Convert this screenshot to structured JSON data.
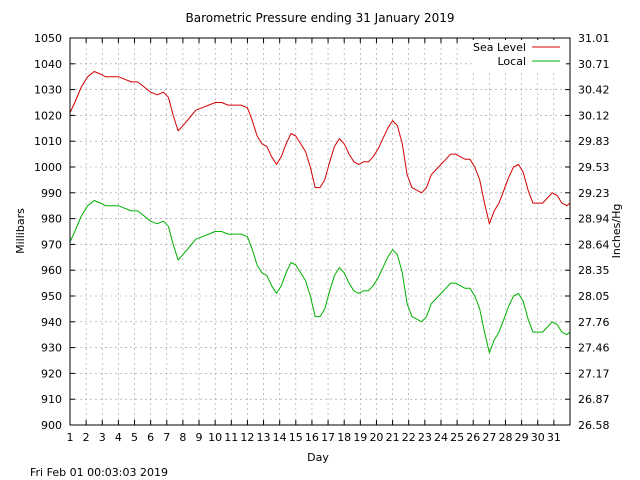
{
  "chart_data": {
    "type": "line",
    "title": "Barometric Pressure ending 31 January 2019",
    "xlabel": "Day",
    "ylabel_left": "Millibars",
    "ylabel_right": "Inches/Hg",
    "footer": "Fri Feb 01 00:03:03 2019",
    "xlim": [
      1,
      32
    ],
    "ylim": [
      900,
      1050
    ],
    "x_ticks": [
      "1",
      "2",
      "3",
      "4",
      "5",
      "6",
      "7",
      "8",
      "9",
      "10",
      "11",
      "12",
      "13",
      "14",
      "15",
      "16",
      "17",
      "18",
      "19",
      "20",
      "21",
      "22",
      "23",
      "24",
      "25",
      "26",
      "27",
      "28",
      "29",
      "30",
      "31"
    ],
    "y_ticks_left": [
      "900",
      "910",
      "920",
      "930",
      "940",
      "950",
      "960",
      "970",
      "980",
      "990",
      "1000",
      "1010",
      "1020",
      "1030",
      "1040",
      "1050"
    ],
    "y_ticks_right": [
      "26.58",
      "26.87",
      "27.17",
      "27.46",
      "27.76",
      "28.05",
      "28.35",
      "28.64",
      "28.94",
      "29.23",
      "29.53",
      "29.83",
      "30.12",
      "30.42",
      "30.71",
      "31.01"
    ],
    "grid": true,
    "legend_position": "top-right",
    "series": [
      {
        "name": "Sea Level",
        "color": "#d40000",
        "x": [
          1.0,
          1.3,
          1.7,
          2.1,
          2.5,
          2.9,
          3.2,
          3.6,
          4.0,
          4.4,
          4.8,
          5.2,
          5.6,
          6.0,
          6.4,
          6.8,
          7.1,
          7.4,
          7.7,
          8.0,
          8.4,
          8.8,
          9.2,
          9.6,
          10.0,
          10.4,
          10.8,
          11.2,
          11.6,
          12.0,
          12.3,
          12.6,
          12.9,
          13.2,
          13.5,
          13.8,
          14.1,
          14.4,
          14.7,
          15.0,
          15.3,
          15.6,
          15.9,
          16.2,
          16.5,
          16.8,
          17.1,
          17.4,
          17.7,
          18.0,
          18.3,
          18.6,
          18.9,
          19.2,
          19.5,
          19.8,
          20.1,
          20.4,
          20.7,
          21.0,
          21.3,
          21.6,
          21.9,
          22.2,
          22.5,
          22.8,
          23.1,
          23.4,
          23.7,
          24.0,
          24.3,
          24.6,
          24.9,
          25.2,
          25.5,
          25.8,
          26.1,
          26.4,
          26.7,
          27.0,
          27.3,
          27.6,
          27.9,
          28.2,
          28.5,
          28.8,
          29.1,
          29.4,
          29.7,
          30.0,
          30.3,
          30.6,
          30.9,
          31.2,
          31.5,
          31.8,
          32.0
        ],
        "values": [
          1021,
          1025,
          1031,
          1035,
          1037,
          1036,
          1035,
          1035,
          1035,
          1034,
          1033,
          1033,
          1031,
          1029,
          1028,
          1029,
          1027,
          1020,
          1014,
          1016,
          1019,
          1022,
          1023,
          1024,
          1025,
          1025,
          1024,
          1024,
          1024,
          1023,
          1018,
          1012,
          1009,
          1008,
          1004,
          1001,
          1004,
          1009,
          1013,
          1012,
          1009,
          1006,
          1000,
          992,
          992,
          995,
          1002,
          1008,
          1011,
          1009,
          1005,
          1002,
          1001,
          1002,
          1002,
          1004,
          1007,
          1011,
          1015,
          1018,
          1016,
          1009,
          997,
          992,
          991,
          990,
          992,
          997,
          999,
          1001,
          1003,
          1005,
          1005,
          1004,
          1003,
          1003,
          1000,
          995,
          986,
          978,
          983,
          986,
          991,
          996,
          1000,
          1001,
          998,
          991,
          986,
          986,
          986,
          988,
          990,
          989,
          986,
          985,
          986
        ]
      },
      {
        "name": "Local",
        "color": "#00b000",
        "x": [
          1.0,
          1.3,
          1.7,
          2.1,
          2.5,
          2.9,
          3.2,
          3.6,
          4.0,
          4.4,
          4.8,
          5.2,
          5.6,
          6.0,
          6.4,
          6.8,
          7.1,
          7.4,
          7.7,
          8.0,
          8.4,
          8.8,
          9.2,
          9.6,
          10.0,
          10.4,
          10.8,
          11.2,
          11.6,
          12.0,
          12.3,
          12.6,
          12.9,
          13.2,
          13.5,
          13.8,
          14.1,
          14.4,
          14.7,
          15.0,
          15.3,
          15.6,
          15.9,
          16.2,
          16.5,
          16.8,
          17.1,
          17.4,
          17.7,
          18.0,
          18.3,
          18.6,
          18.9,
          19.2,
          19.5,
          19.8,
          20.1,
          20.4,
          20.7,
          21.0,
          21.3,
          21.6,
          21.9,
          22.2,
          22.5,
          22.8,
          23.1,
          23.4,
          23.7,
          24.0,
          24.3,
          24.6,
          24.9,
          25.2,
          25.5,
          25.8,
          26.1,
          26.4,
          26.7,
          27.0,
          27.3,
          27.6,
          27.9,
          28.2,
          28.5,
          28.8,
          29.1,
          29.4,
          29.7,
          30.0,
          30.3,
          30.6,
          30.9,
          31.2,
          31.5,
          31.8,
          32.0
        ],
        "values": [
          971,
          975,
          981,
          985,
          987,
          986,
          985,
          985,
          985,
          984,
          983,
          983,
          981,
          979,
          978,
          979,
          977,
          970,
          964,
          966,
          969,
          972,
          973,
          974,
          975,
          975,
          974,
          974,
          974,
          973,
          968,
          962,
          959,
          958,
          954,
          951,
          954,
          959,
          963,
          962,
          959,
          956,
          950,
          942,
          942,
          945,
          952,
          958,
          961,
          959,
          955,
          952,
          951,
          952,
          952,
          954,
          957,
          961,
          965,
          968,
          966,
          959,
          947,
          942,
          941,
          940,
          942,
          947,
          949,
          951,
          953,
          955,
          955,
          954,
          953,
          953,
          950,
          945,
          936,
          928,
          933,
          936,
          941,
          946,
          950,
          951,
          948,
          941,
          936,
          936,
          936,
          938,
          940,
          939,
          936,
          935,
          936
        ]
      }
    ]
  }
}
